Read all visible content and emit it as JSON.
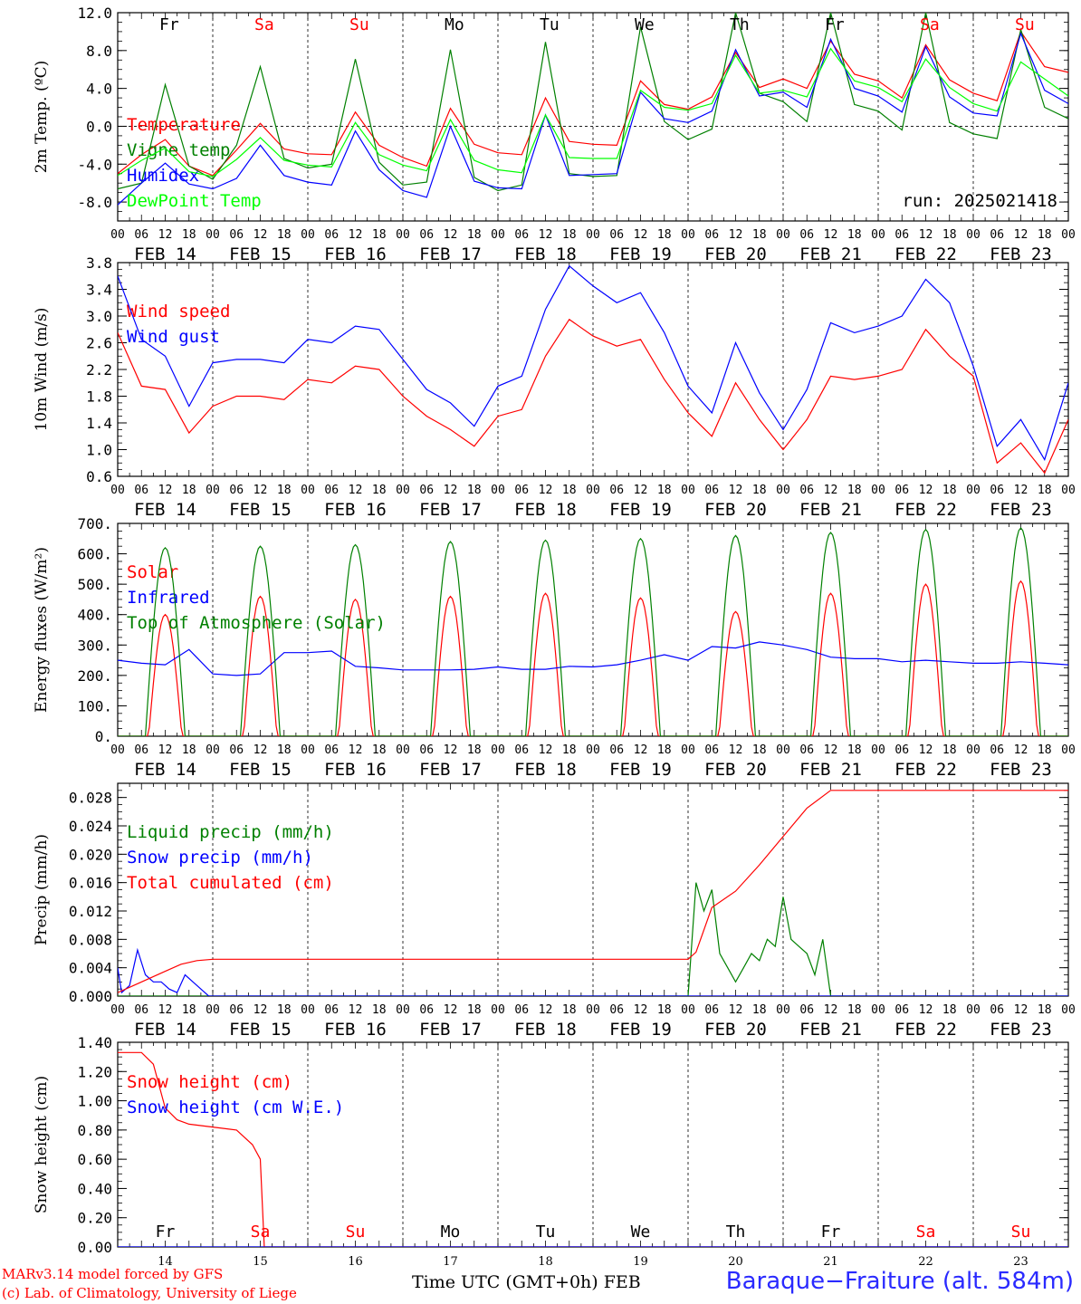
{
  "footer": {
    "credit_line1": "MARv3.14 model forced by GFS",
    "credit_line2": "(c) Lab. of Climatology, University of Liege",
    "x_title": "Time UTC (GMT+0h) FEB",
    "station": "Baraque−Fraiture (alt. 584m)"
  },
  "colors": {
    "red": "#ff0000",
    "green": "#008000",
    "blue": "#0000ff",
    "lightgreen": "#00ff00",
    "frame": "#000000",
    "weekend": "#ff0000"
  },
  "chart_data": [
    {
      "type": "line",
      "ylabel": "2m Temp. (ºC)",
      "ylim": [
        -10,
        12
      ],
      "yticks": [
        "12.0",
        "8.0",
        "4.0",
        "0.0",
        "-4.0",
        "-8.0"
      ],
      "x_hours_from": "FEB 14 00",
      "days_top": [
        "Fr",
        "Sa",
        "Su",
        "Mo",
        "Tu",
        "We",
        "Th",
        "Fr",
        "Sa",
        "Su"
      ],
      "annotation": "run: 2025021418",
      "zero_line": true,
      "series": [
        {
          "name": "Temperature",
          "color": "red",
          "x": [
            0,
            6,
            12,
            18,
            24,
            30,
            36,
            42,
            48,
            54,
            60,
            66,
            72,
            78,
            84,
            90,
            96,
            102,
            108,
            114,
            120,
            126,
            132,
            138,
            144,
            150,
            156,
            162,
            168,
            174,
            180,
            186,
            192,
            198,
            204,
            210,
            216,
            222,
            228,
            234,
            240
          ],
          "values": [
            -5.0,
            -3.0,
            -1.4,
            -4.2,
            -5.2,
            -2.5,
            0.3,
            -2.4,
            -2.9,
            -3.0,
            1.5,
            -2.0,
            -3.3,
            -4.2,
            1.9,
            -1.9,
            -2.8,
            -3.0,
            3.0,
            -1.6,
            -1.9,
            -2.0,
            4.8,
            2.3,
            1.8,
            3.1,
            7.8,
            4.1,
            5.0,
            4.0,
            9.0,
            5.5,
            4.8,
            3.0,
            8.6,
            4.9,
            3.5,
            2.7,
            10.0,
            6.3,
            5.7
          ]
        },
        {
          "name": "Vigne temp",
          "color": "green",
          "x": [
            0,
            6,
            12,
            18,
            24,
            30,
            36,
            42,
            48,
            54,
            60,
            66,
            72,
            78,
            84,
            90,
            96,
            102,
            108,
            114,
            120,
            126,
            132,
            138,
            144,
            150,
            156,
            162,
            168,
            174,
            180,
            186,
            192,
            198,
            204,
            210,
            216,
            222,
            228,
            234,
            240
          ],
          "values": [
            -6.6,
            -6.0,
            4.4,
            -4.2,
            -5.6,
            -2.0,
            6.3,
            -3.4,
            -4.4,
            -4.0,
            7.1,
            -3.8,
            -6.2,
            -5.9,
            8.1,
            -5.4,
            -6.8,
            -6.2,
            8.9,
            -5.0,
            -5.3,
            -5.2,
            10.5,
            0.5,
            -1.4,
            -0.3,
            12.0,
            3.5,
            2.6,
            0.5,
            12.0,
            2.3,
            1.6,
            -0.4,
            12.0,
            0.4,
            -0.8,
            -1.3,
            10.2,
            2.0,
            0.8
          ]
        },
        {
          "name": "Humidex",
          "color": "blue",
          "x": [
            0,
            6,
            12,
            18,
            24,
            30,
            36,
            42,
            48,
            54,
            60,
            66,
            72,
            78,
            84,
            90,
            96,
            102,
            108,
            114,
            120,
            126,
            132,
            138,
            144,
            150,
            156,
            162,
            168,
            174,
            180,
            186,
            192,
            198,
            204,
            210,
            216,
            222,
            228,
            234,
            240
          ],
          "values": [
            -8.3,
            -6.0,
            -3.9,
            -6.1,
            -6.6,
            -5.5,
            -2.0,
            -5.2,
            -5.9,
            -6.2,
            -0.5,
            -4.6,
            -6.8,
            -7.5,
            0.0,
            -5.8,
            -6.5,
            -6.6,
            1.2,
            -5.2,
            -5.1,
            -5.0,
            3.6,
            0.8,
            0.4,
            1.6,
            8.1,
            3.2,
            3.6,
            2.0,
            9.2,
            4.0,
            3.2,
            1.5,
            8.4,
            3.1,
            1.4,
            1.1,
            9.8,
            3.8,
            2.4
          ]
        },
        {
          "name": "DewPoint Temp",
          "color": "lightgreen",
          "x": [
            0,
            6,
            12,
            18,
            24,
            30,
            36,
            42,
            48,
            54,
            60,
            66,
            72,
            78,
            84,
            90,
            96,
            102,
            108,
            114,
            120,
            126,
            132,
            138,
            144,
            150,
            156,
            162,
            168,
            174,
            180,
            186,
            192,
            198,
            204,
            210,
            216,
            222,
            228,
            234,
            240
          ],
          "values": [
            -5.2,
            -3.6,
            -2.3,
            -4.8,
            -5.3,
            -3.5,
            -1.2,
            -3.6,
            -4.1,
            -4.3,
            0.4,
            -3.0,
            -4.1,
            -4.7,
            0.7,
            -3.6,
            -4.6,
            -4.9,
            1.2,
            -3.3,
            -3.4,
            -3.4,
            3.8,
            2.0,
            1.7,
            2.4,
            7.5,
            3.5,
            3.8,
            3.1,
            8.2,
            4.8,
            4.1,
            2.6,
            7.1,
            4.1,
            2.4,
            1.6,
            6.8,
            5.0,
            3.2
          ]
        }
      ]
    },
    {
      "type": "line",
      "ylabel": "10m Wind (m/s)",
      "ylim": [
        0.6,
        3.8
      ],
      "yticks": [
        "3.8",
        "3.4",
        "3.0",
        "2.6",
        "2.2",
        "1.8",
        "1.4",
        "1.0",
        "0.6"
      ],
      "series": [
        {
          "name": "Wind speed",
          "color": "red",
          "x": [
            0,
            6,
            12,
            18,
            24,
            30,
            36,
            42,
            48,
            54,
            60,
            66,
            72,
            78,
            84,
            90,
            96,
            102,
            108,
            114,
            120,
            126,
            132,
            138,
            144,
            150,
            156,
            162,
            168,
            174,
            180,
            186,
            192,
            198,
            204,
            210,
            216,
            222,
            228,
            234,
            240
          ],
          "values": [
            2.75,
            1.95,
            1.9,
            1.25,
            1.65,
            1.8,
            1.8,
            1.75,
            2.05,
            2.0,
            2.25,
            2.2,
            1.8,
            1.5,
            1.3,
            1.05,
            1.5,
            1.6,
            2.4,
            2.95,
            2.7,
            2.55,
            2.65,
            2.05,
            1.55,
            1.2,
            2.0,
            1.45,
            1.0,
            1.45,
            2.1,
            2.05,
            2.1,
            2.2,
            2.8,
            2.4,
            2.1,
            0.8,
            1.1,
            0.65,
            1.45
          ]
        },
        {
          "name": "Wind gust",
          "color": "blue",
          "x": [
            0,
            6,
            12,
            18,
            24,
            30,
            36,
            42,
            48,
            54,
            60,
            66,
            72,
            78,
            84,
            90,
            96,
            102,
            108,
            114,
            120,
            126,
            132,
            138,
            144,
            150,
            156,
            162,
            168,
            174,
            180,
            186,
            192,
            198,
            204,
            210,
            216,
            222,
            228,
            234,
            240
          ],
          "values": [
            3.6,
            2.65,
            2.4,
            1.65,
            2.3,
            2.35,
            2.35,
            2.3,
            2.65,
            2.6,
            2.85,
            2.8,
            2.35,
            1.9,
            1.7,
            1.35,
            1.95,
            2.1,
            3.1,
            3.75,
            3.45,
            3.2,
            3.35,
            2.75,
            1.95,
            1.55,
            2.6,
            1.85,
            1.3,
            1.9,
            2.9,
            2.75,
            2.85,
            3.0,
            3.55,
            3.2,
            2.25,
            1.05,
            1.45,
            0.85,
            2.0
          ]
        }
      ]
    },
    {
      "type": "line",
      "ylabel": "Energy fluxes (W/m²)",
      "ylim": [
        0,
        700
      ],
      "yticks": [
        "700.",
        "600.",
        "500.",
        "400.",
        "300.",
        "200.",
        "100.",
        "0."
      ],
      "series": [
        {
          "name": "Solar",
          "color": "red",
          "peaks": [
            400,
            460,
            450,
            460,
            470,
            455,
            410,
            470,
            500,
            510
          ]
        },
        {
          "name": "Infrared",
          "color": "blue",
          "x": [
            0,
            6,
            12,
            18,
            24,
            30,
            36,
            42,
            48,
            54,
            60,
            66,
            72,
            78,
            84,
            90,
            96,
            102,
            108,
            114,
            120,
            126,
            132,
            138,
            144,
            150,
            156,
            162,
            168,
            174,
            180,
            186,
            192,
            198,
            204,
            210,
            216,
            222,
            228,
            234,
            240
          ],
          "values": [
            250,
            240,
            235,
            285,
            205,
            200,
            205,
            275,
            275,
            280,
            230,
            225,
            218,
            218,
            218,
            220,
            228,
            220,
            220,
            230,
            228,
            235,
            250,
            268,
            250,
            295,
            290,
            310,
            300,
            285,
            260,
            255,
            255,
            245,
            250,
            245,
            240,
            240,
            245,
            240,
            235
          ]
        },
        {
          "name": "Top of Atmosphere (Solar)",
          "color": "green",
          "peaks": [
            620,
            625,
            630,
            640,
            645,
            650,
            660,
            670,
            680,
            685
          ]
        }
      ]
    },
    {
      "type": "line",
      "ylabel": "Precip (mm/h)",
      "ylim": [
        0,
        0.03
      ],
      "yticks": [
        "0.028",
        "0.024",
        "0.020",
        "0.016",
        "0.012",
        "0.008",
        "0.004",
        "0.000"
      ],
      "series": [
        {
          "name": "Liquid precip (mm/h)",
          "color": "green",
          "x": [
            0,
            144,
            146,
            148,
            150,
            152,
            154,
            156,
            158,
            160,
            162,
            164,
            166,
            168,
            170,
            172,
            174,
            176,
            178,
            180,
            182,
            240
          ],
          "values": [
            0,
            0,
            0.016,
            0.012,
            0.015,
            0.006,
            0.004,
            0.002,
            0.004,
            0.006,
            0.005,
            0.008,
            0.007,
            0.014,
            0.008,
            0.007,
            0.006,
            0.003,
            0.008,
            0,
            0,
            0
          ]
        },
        {
          "name": "Snow precip (mm/h)",
          "color": "blue",
          "x": [
            0,
            1,
            3,
            5,
            7,
            9,
            11,
            13,
            15,
            17,
            19,
            21,
            23,
            25,
            240
          ],
          "values": [
            0.004,
            0.0005,
            0.0015,
            0.0065,
            0.003,
            0.002,
            0.002,
            0.001,
            0.0005,
            0.003,
            0.002,
            0.001,
            0,
            0,
            0
          ]
        },
        {
          "name": "Total cumulated (cm)",
          "color": "red",
          "x": [
            0,
            4,
            8,
            12,
            16,
            20,
            24,
            48,
            96,
            144,
            146,
            150,
            156,
            162,
            168,
            174,
            180,
            186,
            192,
            240
          ],
          "values": [
            0.0005,
            0.0015,
            0.0025,
            0.0035,
            0.0045,
            0.005,
            0.0052,
            0.0052,
            0.0052,
            0.0052,
            0.0062,
            0.0125,
            0.0148,
            0.0185,
            0.0225,
            0.0265,
            0.029,
            0.029,
            0.029,
            0.029
          ]
        }
      ]
    },
    {
      "type": "line",
      "ylabel": "Snow height (cm)",
      "ylim": [
        0,
        1.4
      ],
      "yticks": [
        "1.40",
        "1.20",
        "1.00",
        "0.80",
        "0.60",
        "0.40",
        "0.20",
        "0.00"
      ],
      "days_inside": [
        "Fr",
        "Sa",
        "Su",
        "Mo",
        "Tu",
        "We",
        "Th",
        "Fr",
        "Sa",
        "Su"
      ],
      "day_numbers": [
        "14",
        "15",
        "16",
        "17",
        "18",
        "19",
        "20",
        "21",
        "22",
        "23"
      ],
      "series": [
        {
          "name": "Snow height (cm)",
          "color": "red",
          "x": [
            0,
            6,
            9,
            12,
            15,
            18,
            24,
            30,
            34,
            36,
            36.5,
            37,
            240
          ],
          "values": [
            1.33,
            1.33,
            1.25,
            0.95,
            0.87,
            0.84,
            0.82,
            0.8,
            0.7,
            0.6,
            0.3,
            0.0,
            0.0
          ]
        },
        {
          "name": "Snow height (cm W.E.)",
          "color": "blue",
          "x": [
            0,
            240
          ],
          "values": [
            0,
            0
          ]
        }
      ]
    }
  ],
  "x_axis": {
    "hour_ticks": [
      "00",
      "06",
      "12",
      "18"
    ],
    "dates": [
      "FEB 14",
      "FEB 15",
      "FEB 16",
      "FEB 17",
      "FEB 18",
      "FEB 19",
      "FEB 20",
      "FEB 21",
      "FEB 22",
      "FEB 23"
    ]
  }
}
